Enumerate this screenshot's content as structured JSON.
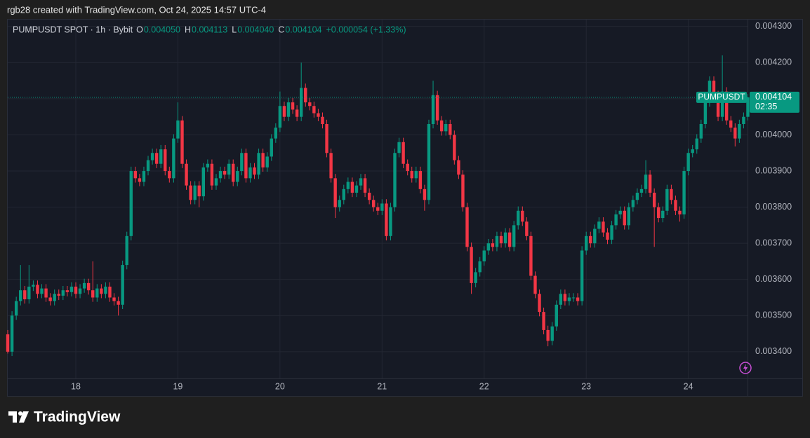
{
  "header": "rgb28 created with TradingView.com, Oct 24, 2025 14:57 UTC-4",
  "footer": {
    "brand": "TradingView"
  },
  "chart_data": {
    "type": "candlestick",
    "legend": {
      "symbol": "PUMPUSDT SPOT · 1h · Bybit",
      "items": [
        {
          "key": "O",
          "value": "0.004050"
        },
        {
          "key": "H",
          "value": "0.004113"
        },
        {
          "key": "L",
          "value": "0.004040"
        },
        {
          "key": "C",
          "value": "0.004104"
        }
      ],
      "change": "+0.000054 (+1.33%)"
    },
    "price_tag": {
      "symbol": "PUMPUSDT",
      "price": "0.004104",
      "countdown": "02:35"
    },
    "up_color": "#089981",
    "down_color": "#f23645",
    "ylim": [
      0.003326,
      0.004319
    ],
    "yticks": [
      {
        "value": 0.0043,
        "label": "0.004300"
      },
      {
        "value": 0.0042,
        "label": "0.004200"
      },
      {
        "value": 0.0041,
        "label": "0.004100"
      },
      {
        "value": 0.004,
        "label": "0.004000"
      },
      {
        "value": 0.0039,
        "label": "0.003900"
      },
      {
        "value": 0.0038,
        "label": "0.003800"
      },
      {
        "value": 0.0037,
        "label": "0.003700"
      },
      {
        "value": 0.0036,
        "label": "0.003600"
      },
      {
        "value": 0.0035,
        "label": "0.003500"
      },
      {
        "value": 0.0034,
        "label": "0.003400"
      }
    ],
    "grid": true,
    "categories": [
      null,
      null,
      null,
      null,
      null,
      null,
      null,
      null,
      null,
      null,
      null,
      null,
      null,
      null,
      null,
      null,
      "18",
      null,
      null,
      null,
      null,
      null,
      null,
      null,
      null,
      null,
      null,
      null,
      null,
      null,
      null,
      null,
      null,
      null,
      null,
      null,
      null,
      null,
      null,
      null,
      "19",
      null,
      null,
      null,
      null,
      null,
      null,
      null,
      null,
      null,
      null,
      null,
      null,
      null,
      null,
      null,
      null,
      null,
      null,
      null,
      null,
      null,
      null,
      null,
      "20",
      null,
      null,
      null,
      null,
      null,
      null,
      null,
      null,
      null,
      null,
      null,
      null,
      null,
      null,
      null,
      null,
      null,
      null,
      null,
      null,
      null,
      null,
      null,
      "21",
      null,
      null,
      null,
      null,
      null,
      null,
      null,
      null,
      null,
      null,
      null,
      null,
      null,
      null,
      null,
      null,
      null,
      null,
      null,
      null,
      null,
      null,
      null,
      "22",
      null,
      null,
      null,
      null,
      null,
      null,
      null,
      null,
      null,
      null,
      null,
      null,
      null,
      null,
      null,
      null,
      null,
      null,
      null,
      null,
      null,
      null,
      null,
      "23",
      null,
      null,
      null,
      null,
      null,
      null,
      null,
      null,
      null,
      null,
      null,
      null,
      null,
      null,
      null,
      null,
      null,
      null,
      null,
      null,
      null,
      null,
      null,
      "24",
      null,
      null,
      null,
      null,
      null,
      null,
      null,
      null,
      null,
      null,
      null,
      null,
      null,
      null
    ],
    "open": [
      0.003448,
      0.0034,
      0.0035,
      0.00354,
      0.00357,
      0.003545,
      0.00358,
      0.003585,
      0.00356,
      0.003575,
      0.00355,
      0.00354,
      0.00356,
      0.003555,
      0.00357,
      0.003565,
      0.00358,
      0.00356,
      0.003575,
      0.00359,
      0.00357,
      0.00355,
      0.003575,
      0.00356,
      0.00358,
      0.00355,
      0.00354,
      0.00353,
      0.00364,
      0.00372,
      0.0039,
      0.00388,
      0.00387,
      0.0039,
      0.00393,
      0.00395,
      0.00392,
      0.00396,
      0.0039,
      0.00388,
      0.00399,
      0.00404,
      0.00392,
      0.00386,
      0.00382,
      0.00386,
      0.00383,
      0.00391,
      0.00392,
      0.00386,
      0.00388,
      0.0039,
      0.00389,
      0.00392,
      0.00387,
      0.0039,
      0.00395,
      0.00388,
      0.00391,
      0.00389,
      0.00395,
      0.00391,
      0.00394,
      0.00399,
      0.00402,
      0.00408,
      0.00405,
      0.00409,
      0.00407,
      0.00405,
      0.00413,
      0.00409,
      0.00408,
      0.00406,
      0.00405,
      0.00403,
      0.00395,
      0.00388,
      0.0038,
      0.00382,
      0.00385,
      0.00387,
      0.00384,
      0.00386,
      0.00388,
      0.00384,
      0.00382,
      0.0038,
      0.00379,
      0.00381,
      0.00372,
      0.0038,
      0.00395,
      0.00398,
      0.00392,
      0.0039,
      0.00388,
      0.0039,
      0.00385,
      0.00382,
      0.00403,
      0.00411,
      0.00404,
      0.00401,
      0.00403,
      0.004,
      0.00393,
      0.00389,
      0.0038,
      0.00369,
      0.00359,
      0.00362,
      0.00365,
      0.00368,
      0.0037,
      0.00369,
      0.00372,
      0.0037,
      0.00373,
      0.00369,
      0.00375,
      0.00379,
      0.00376,
      0.00372,
      0.00361,
      0.00356,
      0.00351,
      0.00346,
      0.00343,
      0.00347,
      0.00353,
      0.00356,
      0.00354,
      0.00355,
      0.00355,
      0.00354,
      0.00368,
      0.00372,
      0.0037,
      0.00374,
      0.00376,
      0.00373,
      0.00371,
      0.00375,
      0.00378,
      0.00379,
      0.00375,
      0.0038,
      0.00382,
      0.00384,
      0.00385,
      0.00389,
      0.00384,
      0.0038,
      0.00377,
      0.00379,
      0.00385,
      0.00382,
      0.00379,
      0.00378,
      0.0039,
      0.00395,
      0.00396,
      0.00399,
      0.00403,
      0.00409,
      0.00415,
      0.00411,
      0.00405,
      0.00412,
      0.00404,
      0.00402,
      0.00399,
      0.00403,
      0.00405
    ],
    "high": [
      0.00346,
      0.003512,
      0.003552,
      0.00364,
      0.003582,
      0.00364,
      0.003597,
      0.003597,
      0.003587,
      0.003587,
      0.003562,
      0.003572,
      0.003572,
      0.003582,
      0.003582,
      0.003592,
      0.003592,
      0.003587,
      0.003602,
      0.003602,
      0.00365,
      0.003587,
      0.003587,
      0.003592,
      0.003592,
      0.003562,
      0.003552,
      0.003652,
      0.003732,
      0.003912,
      0.003912,
      0.003892,
      0.003912,
      0.003942,
      0.003962,
      0.003962,
      0.003972,
      0.003972,
      0.003912,
      0.004002,
      0.00409,
      0.004052,
      0.003932,
      0.003872,
      0.003872,
      0.003872,
      0.003922,
      0.003932,
      0.003932,
      0.003892,
      0.003912,
      0.003912,
      0.003932,
      0.003932,
      0.003912,
      0.003962,
      0.003962,
      0.003922,
      0.003922,
      0.003962,
      0.003962,
      0.003952,
      0.004002,
      0.004032,
      0.00412,
      0.004092,
      0.004102,
      0.004102,
      0.004082,
      0.0042,
      0.004142,
      0.004102,
      0.004092,
      0.004072,
      0.004062,
      0.004042,
      0.003962,
      0.003892,
      0.003832,
      0.003862,
      0.003882,
      0.003882,
      0.003872,
      0.003892,
      0.003892,
      0.003852,
      0.003832,
      0.003812,
      0.003822,
      0.003822,
      0.003812,
      0.003962,
      0.003992,
      0.003992,
      0.003932,
      0.003912,
      0.003912,
      0.003912,
      0.003862,
      0.004042,
      0.00415,
      0.004122,
      0.004052,
      0.004042,
      0.004042,
      0.004012,
      0.003942,
      0.003902,
      0.003812,
      0.003702,
      0.003632,
      0.003662,
      0.003692,
      0.003712,
      0.003712,
      0.003732,
      0.003732,
      0.003742,
      0.003742,
      0.003762,
      0.003802,
      0.003802,
      0.003772,
      0.003732,
      0.003622,
      0.003572,
      0.003522,
      0.003472,
      0.003482,
      0.003542,
      0.003572,
      0.003572,
      0.003562,
      0.003562,
      0.003562,
      0.003692,
      0.003732,
      0.003732,
      0.003752,
      0.003772,
      0.003772,
      0.003742,
      0.003762,
      0.003792,
      0.003802,
      0.003802,
      0.003812,
      0.003832,
      0.003852,
      0.003862,
      0.00393,
      0.003902,
      0.003852,
      0.003812,
      0.003802,
      0.003862,
      0.003862,
      0.003832,
      0.003802,
      0.003912,
      0.003962,
      0.003972,
      0.004002,
      0.004042,
      0.004102,
      0.004162,
      0.004162,
      0.004122,
      0.00422,
      0.004132,
      0.004052,
      0.004032,
      0.004042,
      0.004062,
      0.004113
    ],
    "low": [
      0.003395,
      0.003388,
      0.003488,
      0.003528,
      0.003533,
      0.003533,
      0.003568,
      0.003548,
      0.003548,
      0.003538,
      0.003528,
      0.003528,
      0.003543,
      0.003543,
      0.003553,
      0.003553,
      0.003548,
      0.003548,
      0.003563,
      0.003558,
      0.003538,
      0.003538,
      0.003548,
      0.003548,
      0.003538,
      0.003528,
      0.0035,
      0.003518,
      0.003628,
      0.003708,
      0.003868,
      0.003858,
      0.003858,
      0.003888,
      0.003918,
      0.003908,
      0.003908,
      0.003888,
      0.003868,
      0.003868,
      0.003978,
      0.003908,
      0.003848,
      0.003808,
      0.003808,
      0.0038,
      0.003818,
      0.003898,
      0.003848,
      0.003848,
      0.003868,
      0.003878,
      0.003878,
      0.003858,
      0.003858,
      0.003888,
      0.003868,
      0.003868,
      0.003878,
      0.003878,
      0.003898,
      0.003898,
      0.003928,
      0.003978,
      0.004008,
      0.004038,
      0.004038,
      0.004058,
      0.004038,
      0.004038,
      0.004078,
      0.004068,
      0.004048,
      0.004038,
      0.004018,
      0.003938,
      0.003868,
      0.00377,
      0.003788,
      0.003808,
      0.003838,
      0.003828,
      0.003828,
      0.003848,
      0.003828,
      0.003808,
      0.003788,
      0.003778,
      0.003778,
      0.003708,
      0.003708,
      0.003788,
      0.003938,
      0.003908,
      0.003888,
      0.003868,
      0.003868,
      0.003838,
      0.00379,
      0.003808,
      0.004018,
      0.004028,
      0.003998,
      0.003998,
      0.003988,
      0.003918,
      0.003878,
      0.003788,
      0.003678,
      0.00356,
      0.003578,
      0.003608,
      0.003638,
      0.003668,
      0.003678,
      0.003678,
      0.003688,
      0.003688,
      0.003678,
      0.003678,
      0.003738,
      0.003748,
      0.003708,
      0.003598,
      0.003548,
      0.003498,
      0.003448,
      0.003415,
      0.003418,
      0.003458,
      0.003518,
      0.003528,
      0.003528,
      0.003538,
      0.003528,
      0.003528,
      0.003668,
      0.003688,
      0.003688,
      0.003728,
      0.003718,
      0.003698,
      0.003698,
      0.003738,
      0.003768,
      0.003738,
      0.003738,
      0.003788,
      0.003808,
      0.003828,
      0.003838,
      0.003828,
      0.00369,
      0.003758,
      0.003758,
      0.003778,
      0.003808,
      0.003778,
      0.00376,
      0.003768,
      0.003888,
      0.003938,
      0.003948,
      0.003978,
      0.004018,
      0.004078,
      0.004098,
      0.004038,
      0.004038,
      0.004028,
      0.004008,
      0.003968,
      0.003978,
      0.004018,
      0.00404
    ],
    "close": [
      0.0034,
      0.0035,
      0.00354,
      0.00357,
      0.003545,
      0.00358,
      0.003585,
      0.00356,
      0.003575,
      0.00355,
      0.00354,
      0.00356,
      0.003555,
      0.00357,
      0.003565,
      0.00358,
      0.00356,
      0.003575,
      0.00359,
      0.00357,
      0.00355,
      0.003575,
      0.00356,
      0.00358,
      0.00355,
      0.00354,
      0.00353,
      0.00364,
      0.00372,
      0.0039,
      0.00388,
      0.00387,
      0.0039,
      0.00393,
      0.00395,
      0.00392,
      0.00396,
      0.0039,
      0.00388,
      0.00399,
      0.00404,
      0.00392,
      0.00386,
      0.00382,
      0.00386,
      0.00383,
      0.00391,
      0.00392,
      0.00386,
      0.00388,
      0.0039,
      0.00389,
      0.00392,
      0.00387,
      0.0039,
      0.00395,
      0.00388,
      0.00391,
      0.00389,
      0.00395,
      0.00391,
      0.00394,
      0.00399,
      0.00402,
      0.00408,
      0.00405,
      0.00409,
      0.00407,
      0.00405,
      0.00413,
      0.00409,
      0.00408,
      0.00406,
      0.00405,
      0.00403,
      0.00395,
      0.00388,
      0.0038,
      0.00382,
      0.00385,
      0.00387,
      0.00384,
      0.00386,
      0.00388,
      0.00384,
      0.00382,
      0.0038,
      0.00379,
      0.00381,
      0.00372,
      0.0038,
      0.00395,
      0.00398,
      0.00392,
      0.0039,
      0.00388,
      0.0039,
      0.00385,
      0.00382,
      0.00403,
      0.00411,
      0.00404,
      0.00401,
      0.00403,
      0.004,
      0.00393,
      0.00389,
      0.0038,
      0.00369,
      0.00359,
      0.00362,
      0.00365,
      0.00368,
      0.0037,
      0.00369,
      0.00372,
      0.0037,
      0.00373,
      0.00369,
      0.00375,
      0.00379,
      0.00376,
      0.00372,
      0.00361,
      0.00356,
      0.00351,
      0.00346,
      0.00343,
      0.00347,
      0.00353,
      0.00356,
      0.00354,
      0.00355,
      0.00355,
      0.00354,
      0.00368,
      0.00372,
      0.0037,
      0.00374,
      0.00376,
      0.00373,
      0.00371,
      0.00375,
      0.00378,
      0.00379,
      0.00375,
      0.0038,
      0.00382,
      0.00384,
      0.00385,
      0.00389,
      0.00384,
      0.0038,
      0.00377,
      0.00379,
      0.00385,
      0.00382,
      0.00379,
      0.00378,
      0.0039,
      0.00395,
      0.00396,
      0.00399,
      0.00403,
      0.00409,
      0.00415,
      0.00411,
      0.00405,
      0.00412,
      0.00404,
      0.00402,
      0.00399,
      0.00403,
      0.00405,
      0.004104
    ]
  }
}
